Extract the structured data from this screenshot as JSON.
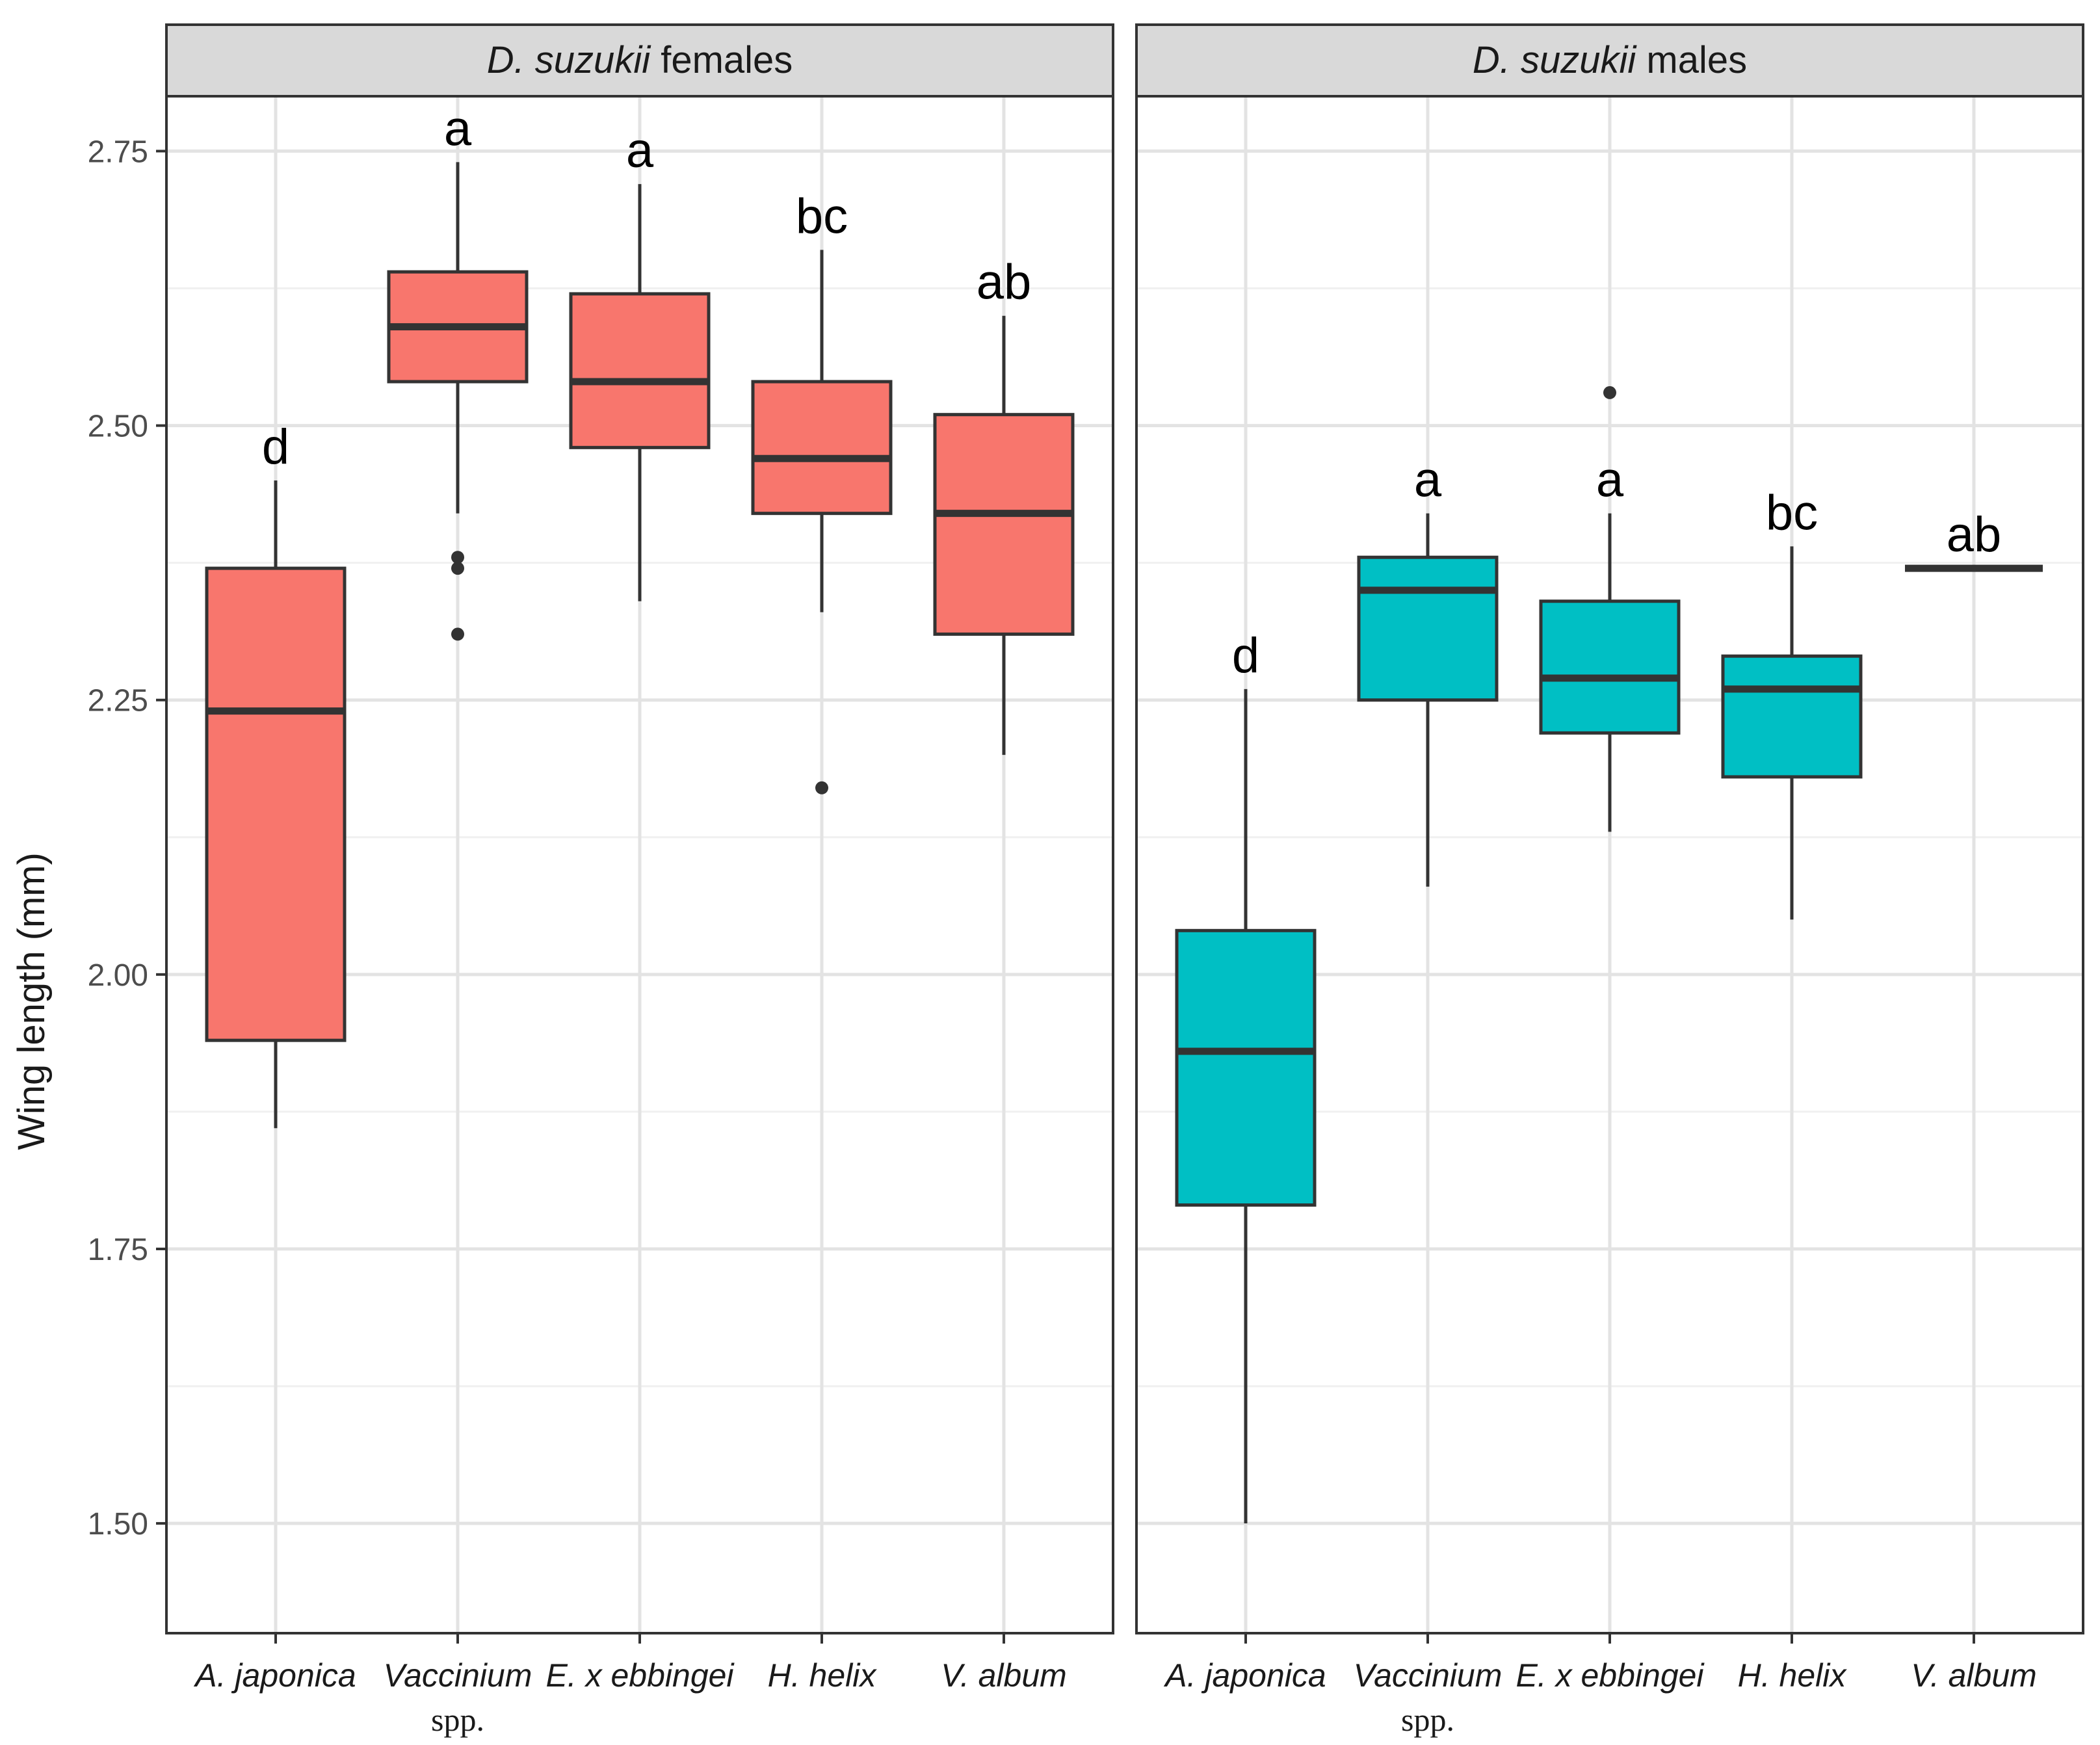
{
  "chart_data": {
    "type": "boxplot",
    "ylabel": "Wing length (mm)",
    "ylim": [
      1.4,
      2.8
    ],
    "y_ticks": [
      "1.50",
      "1.75",
      "2.00",
      "2.25",
      "2.50",
      "2.75"
    ],
    "y_tick_values": [
      1.5,
      1.75,
      2.0,
      2.25,
      2.5,
      2.75
    ],
    "categories": [
      {
        "main": "A. japonica",
        "sub": ""
      },
      {
        "main": "Vaccinium",
        "sub": "spp."
      },
      {
        "main": "E. x ebbingei",
        "sub": ""
      },
      {
        "main": "H. helix",
        "sub": ""
      },
      {
        "main": "V. album",
        "sub": ""
      }
    ],
    "panels": [
      {
        "strip_italic": "D. suzukii",
        "strip_rest": " females",
        "color": "#F8766D",
        "boxes": [
          {
            "category": "A. japonica",
            "letter": "d",
            "whisker_low": 1.86,
            "q1": 1.94,
            "median": 2.24,
            "q3": 2.37,
            "whisker_high": 2.45,
            "outliers": []
          },
          {
            "category": "Vaccinium spp.",
            "letter": "a",
            "whisker_low": 2.42,
            "q1": 2.54,
            "median": 2.59,
            "q3": 2.64,
            "whisker_high": 2.74,
            "outliers": [
              2.38,
              2.37,
              2.31
            ]
          },
          {
            "category": "E. x ebbingei",
            "letter": "a",
            "whisker_low": 2.34,
            "q1": 2.48,
            "median": 2.54,
            "q3": 2.62,
            "whisker_high": 2.72,
            "outliers": []
          },
          {
            "category": "H. helix",
            "letter": "bc",
            "whisker_low": 2.33,
            "q1": 2.42,
            "median": 2.47,
            "q3": 2.54,
            "whisker_high": 2.66,
            "outliers": [
              2.17
            ]
          },
          {
            "category": "V. album",
            "letter": "ab",
            "whisker_low": 2.2,
            "q1": 2.31,
            "median": 2.42,
            "q3": 2.51,
            "whisker_high": 2.6,
            "outliers": []
          }
        ]
      },
      {
        "strip_italic": "D. suzukii",
        "strip_rest": " males",
        "color": "#00BFC4",
        "boxes": [
          {
            "category": "A. japonica",
            "letter": "d",
            "whisker_low": 1.5,
            "q1": 1.79,
            "median": 1.93,
            "q3": 2.04,
            "whisker_high": 2.26,
            "outliers": []
          },
          {
            "category": "Vaccinium spp.",
            "letter": "a",
            "whisker_low": 2.08,
            "q1": 2.25,
            "median": 2.35,
            "q3": 2.38,
            "whisker_high": 2.42,
            "outliers": []
          },
          {
            "category": "E. x ebbingei",
            "letter": "a",
            "whisker_low": 2.13,
            "q1": 2.22,
            "median": 2.27,
            "q3": 2.34,
            "whisker_high": 2.42,
            "outliers": [
              2.53
            ]
          },
          {
            "category": "H. helix",
            "letter": "bc",
            "whisker_low": 2.05,
            "q1": 2.18,
            "median": 2.26,
            "q3": 2.29,
            "whisker_high": 2.39,
            "outliers": []
          },
          {
            "category": "V. album",
            "letter": "ab",
            "whisker_low": 2.37,
            "q1": 2.37,
            "median": 2.37,
            "q3": 2.37,
            "whisker_high": 2.37,
            "outliers": []
          }
        ]
      }
    ]
  }
}
